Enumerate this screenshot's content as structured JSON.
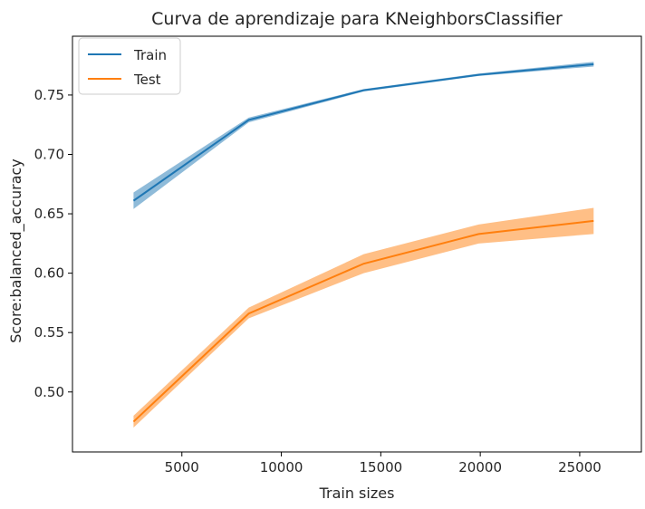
{
  "chart_data": {
    "type": "line",
    "title": "Curva de aprendizaje para KNeighborsClassifier",
    "xlabel": "Train sizes",
    "ylabel": "Score:balanced_accuracy",
    "x": [
      2570,
      8360,
      14140,
      19920,
      25700
    ],
    "xlim": [
      -500,
      28100
    ],
    "ylim": [
      0.4495,
      0.7995
    ],
    "xticks": [
      5000,
      10000,
      15000,
      20000,
      25000
    ],
    "yticks": [
      0.5,
      0.55,
      0.6,
      0.65,
      0.7,
      0.75
    ],
    "xtick_labels": [
      "5000",
      "10000",
      "15000",
      "20000",
      "25000"
    ],
    "ytick_labels": [
      "0.50",
      "0.55",
      "0.60",
      "0.65",
      "0.70",
      "0.75"
    ],
    "grid": false,
    "legend_position": "top-left",
    "series": [
      {
        "name": "Train",
        "color": "#1f77b4",
        "values": [
          0.661,
          0.729,
          0.754,
          0.767,
          0.776
        ],
        "lower": [
          0.654,
          0.727,
          0.753,
          0.766,
          0.774
        ],
        "upper": [
          0.668,
          0.731,
          0.755,
          0.768,
          0.778
        ]
      },
      {
        "name": "Test",
        "color": "#ff7f0e",
        "values": [
          0.475,
          0.566,
          0.608,
          0.633,
          0.644
        ],
        "lower": [
          0.47,
          0.562,
          0.6,
          0.625,
          0.633
        ],
        "upper": [
          0.48,
          0.571,
          0.616,
          0.641,
          0.655
        ]
      }
    ]
  }
}
